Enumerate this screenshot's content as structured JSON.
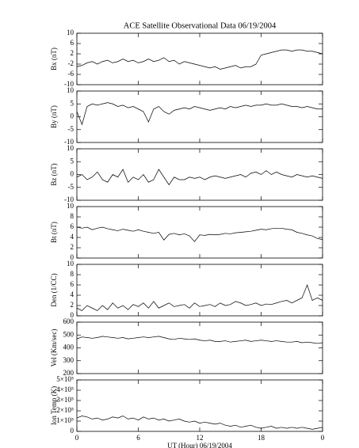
{
  "chart_data": [
    {
      "type": "line",
      "title": "ACE Satellite Observational Data   06/19/2004",
      "ylabel": "Bx (nT)",
      "x": [
        0,
        0.5,
        1,
        1.5,
        2,
        2.5,
        3,
        3.5,
        4,
        4.5,
        5,
        5.5,
        6,
        6.5,
        7,
        7.5,
        8,
        8.5,
        9,
        9.5,
        10,
        10.5,
        11,
        11.5,
        12,
        12.5,
        13,
        13.5,
        14,
        14.5,
        15,
        15.5,
        16,
        16.5,
        17,
        17.5,
        18,
        18.5,
        19,
        19.5,
        20,
        20.5,
        21,
        21.5,
        22,
        22.5,
        23,
        23.5,
        24
      ],
      "values": [
        -3,
        -2.5,
        -1.5,
        -1,
        -2,
        -1,
        -0.5,
        -1.5,
        -1,
        0,
        -1,
        -0.5,
        -1.5,
        -1,
        0,
        -1,
        -0.5,
        0.5,
        -1,
        -0.5,
        -2,
        -1,
        -1.5,
        -2,
        -2.5,
        -3,
        -3.5,
        -3,
        -4,
        -3.5,
        -3,
        -2.5,
        -3.5,
        -3,
        -3,
        -2,
        1.5,
        2,
        2.5,
        3,
        3.5,
        3.5,
        3,
        3.5,
        3.5,
        3,
        3,
        2.5,
        2
      ],
      "color": "#000000",
      "xlim": [
        0,
        24
      ],
      "xticks": [
        0,
        6,
        12,
        18,
        {
          "value": 24,
          "label": "0"
        }
      ],
      "ylim": [
        -10,
        10
      ],
      "yticks": [
        -10,
        -6,
        -2,
        2,
        6,
        10
      ]
    },
    {
      "type": "line",
      "ylabel": "By (nT)",
      "x": [
        0,
        0.5,
        1,
        1.5,
        2,
        2.5,
        3,
        3.5,
        4,
        4.5,
        5,
        5.5,
        6,
        6.5,
        7,
        7.5,
        8,
        8.5,
        9,
        9.5,
        10,
        10.5,
        11,
        11.5,
        12,
        12.5,
        13,
        13.5,
        14,
        14.5,
        15,
        15.5,
        16,
        16.5,
        17,
        17.5,
        18,
        18.5,
        19,
        19.5,
        20,
        20.5,
        21,
        21.5,
        22,
        22.5,
        23,
        23.5,
        24
      ],
      "values": [
        2,
        -3,
        4,
        5,
        4.5,
        5,
        5.5,
        5,
        4,
        4.5,
        3.5,
        4,
        3,
        2,
        -2,
        3,
        4,
        2,
        1,
        2.5,
        3,
        3.5,
        3,
        4,
        3.5,
        3,
        2.5,
        3,
        3.5,
        3,
        4,
        3.5,
        4,
        4.5,
        4,
        4.5,
        4.5,
        5,
        4.5,
        4.5,
        5,
        4.5,
        4,
        4,
        3.5,
        4,
        3.5,
        3,
        3
      ],
      "color": "#000000",
      "xlim": [
        0,
        24
      ],
      "xticks": [
        0,
        6,
        12,
        18,
        {
          "value": 24,
          "label": "0"
        }
      ],
      "ylim": [
        -10,
        10
      ],
      "yticks": [
        -10,
        -5,
        0,
        5,
        10
      ]
    },
    {
      "type": "line",
      "ylabel": "Bz (nT)",
      "x": [
        0,
        0.5,
        1,
        1.5,
        2,
        2.5,
        3,
        3.5,
        4,
        4.5,
        5,
        5.5,
        6,
        6.5,
        7,
        7.5,
        8,
        8.5,
        9,
        9.5,
        10,
        10.5,
        11,
        11.5,
        12,
        12.5,
        13,
        13.5,
        14,
        14.5,
        15,
        15.5,
        16,
        16.5,
        17,
        17.5,
        18,
        18.5,
        19,
        19.5,
        20,
        20.5,
        21,
        21.5,
        22,
        22.5,
        23,
        23.5,
        24
      ],
      "values": [
        -1,
        0,
        -2,
        -1,
        1,
        -2,
        -3,
        0,
        -1,
        2,
        -3,
        -1,
        -2,
        0,
        -3,
        -2,
        2,
        -1,
        -4,
        -1,
        -2,
        -2,
        -1,
        -1.5,
        -1,
        -2,
        -1,
        -0.5,
        -1,
        -1.5,
        -1,
        -0.5,
        0,
        -1,
        0.5,
        1,
        0,
        1.5,
        0,
        1,
        0,
        -0.5,
        -1,
        0,
        -0.5,
        -1,
        -0.5,
        -1,
        -1.5
      ],
      "color": "#000000",
      "xlim": [
        0,
        24
      ],
      "xticks": [
        0,
        6,
        12,
        18,
        {
          "value": 24,
          "label": "0"
        }
      ],
      "ylim": [
        -10,
        10
      ],
      "yticks": [
        -10,
        -5,
        0,
        5,
        10
      ]
    },
    {
      "type": "line",
      "ylabel": "Bt (nT)",
      "x": [
        0,
        0.5,
        1,
        1.5,
        2,
        2.5,
        3,
        3.5,
        4,
        4.5,
        5,
        5.5,
        6,
        6.5,
        7,
        7.5,
        8,
        8.5,
        9,
        9.5,
        10,
        10.5,
        11,
        11.5,
        12,
        12.5,
        13,
        13.5,
        14,
        14.5,
        15,
        15.5,
        16,
        16.5,
        17,
        17.5,
        18,
        18.5,
        19,
        19.5,
        20,
        20.5,
        21,
        21.5,
        22,
        22.5,
        23,
        23.5,
        24
      ],
      "values": [
        6,
        5.8,
        6,
        5.5,
        5.8,
        6,
        5.7,
        5.5,
        5.3,
        5.6,
        5.4,
        5.2,
        5.5,
        5.2,
        5,
        4.8,
        5,
        3.5,
        4.6,
        4.8,
        4.5,
        4.7,
        4.3,
        3.2,
        4.5,
        4.4,
        4.6,
        4.5,
        4.6,
        4.8,
        4.7,
        4.9,
        5,
        5.1,
        5.2,
        5.4,
        5.6,
        5.5,
        5.7,
        5.8,
        5.8,
        5.6,
        5.5,
        5,
        4.8,
        4.5,
        4.3,
        3.8,
        3.6
      ],
      "color": "#000000",
      "xlim": [
        0,
        24
      ],
      "xticks": [
        0,
        6,
        12,
        18,
        {
          "value": 24,
          "label": "0"
        }
      ],
      "ylim": [
        0,
        10
      ],
      "yticks": [
        0,
        2,
        4,
        6,
        8,
        10
      ]
    },
    {
      "type": "line",
      "ylabel": "Den (1/CC)",
      "x": [
        0,
        0.5,
        1,
        1.5,
        2,
        2.5,
        3,
        3.5,
        4,
        4.5,
        5,
        5.5,
        6,
        6.5,
        7,
        7.5,
        8,
        8.5,
        9,
        9.5,
        10,
        10.5,
        11,
        11.5,
        12,
        12.5,
        13,
        13.5,
        14,
        14.5,
        15,
        15.5,
        16,
        16.5,
        17,
        17.5,
        18,
        18.5,
        19,
        19.5,
        20,
        20.5,
        21,
        21.5,
        22,
        22.5,
        23,
        23.5,
        24
      ],
      "values": [
        1.5,
        1,
        2,
        1.5,
        1,
        2,
        1.2,
        2.5,
        1.5,
        2,
        1.2,
        2.2,
        1.8,
        2.5,
        1.5,
        2.8,
        1.5,
        2,
        2.5,
        1.8,
        2,
        2.2,
        1.5,
        2.5,
        1.8,
        2,
        2.2,
        1.8,
        2.5,
        2,
        2.2,
        2.8,
        2.5,
        2,
        2.2,
        2.5,
        2,
        2.3,
        2.2,
        2.5,
        2.8,
        3,
        2.5,
        3,
        3.5,
        6,
        3,
        3.5,
        3
      ],
      "color": "#000000",
      "xlim": [
        0,
        24
      ],
      "xticks": [
        0,
        6,
        12,
        18,
        {
          "value": 24,
          "label": "0"
        }
      ],
      "ylim": [
        0,
        10
      ],
      "yticks": [
        0,
        2,
        4,
        6,
        8,
        10
      ]
    },
    {
      "type": "line",
      "ylabel": "Vel (Km/sec)",
      "x": [
        0,
        0.5,
        1,
        1.5,
        2,
        2.5,
        3,
        3.5,
        4,
        4.5,
        5,
        5.5,
        6,
        6.5,
        7,
        7.5,
        8,
        8.5,
        9,
        9.5,
        10,
        10.5,
        11,
        11.5,
        12,
        12.5,
        13,
        13.5,
        14,
        14.5,
        15,
        15.5,
        16,
        16.5,
        17,
        17.5,
        18,
        18.5,
        19,
        19.5,
        20,
        20.5,
        21,
        21.5,
        22,
        22.5,
        23,
        23.5,
        24
      ],
      "values": [
        470,
        485,
        480,
        475,
        480,
        490,
        485,
        480,
        475,
        480,
        470,
        475,
        480,
        485,
        480,
        485,
        490,
        480,
        470,
        465,
        475,
        470,
        465,
        470,
        460,
        455,
        460,
        450,
        450,
        455,
        445,
        450,
        455,
        460,
        450,
        455,
        460,
        455,
        450,
        455,
        450,
        445,
        445,
        450,
        440,
        445,
        440,
        435,
        440
      ],
      "color": "#000000",
      "xlim": [
        0,
        24
      ],
      "xticks": [
        0,
        6,
        12,
        18,
        {
          "value": 24,
          "label": "0"
        }
      ],
      "ylim": [
        200,
        600
      ],
      "yticks": [
        200,
        300,
        400,
        500,
        600
      ]
    },
    {
      "type": "line",
      "ylabel": "Ion Temp (K)",
      "xlabel": "UT (Hour)   06/19/2004",
      "x": [
        0,
        0.5,
        1,
        1.5,
        2,
        2.5,
        3,
        3.5,
        4,
        4.5,
        5,
        5.5,
        6,
        6.5,
        7,
        7.5,
        8,
        8.5,
        9,
        9.5,
        10,
        10.5,
        11,
        11.5,
        12,
        12.5,
        13,
        13.5,
        14,
        14.5,
        15,
        15.5,
        16,
        16.5,
        17,
        17.5,
        18,
        18.5,
        19,
        19.5,
        20,
        20.5,
        21,
        21.5,
        22,
        22.5,
        23,
        23.5,
        24
      ],
      "values": [
        130000,
        150000,
        140000,
        120000,
        130000,
        110000,
        120000,
        140000,
        130000,
        150000,
        120000,
        130000,
        110000,
        140000,
        120000,
        130000,
        110000,
        120000,
        100000,
        110000,
        120000,
        100000,
        90000,
        100000,
        80000,
        90000,
        80000,
        70000,
        80000,
        60000,
        50000,
        60000,
        40000,
        50000,
        60000,
        40000,
        30000,
        40000,
        50000,
        30000,
        40000,
        30000,
        40000,
        30000,
        40000,
        30000,
        20000,
        30000,
        40000
      ],
      "color": "#000000",
      "xlim": [
        0,
        24
      ],
      "xticks": [
        0,
        6,
        12,
        18,
        {
          "value": 24,
          "label": "0"
        }
      ],
      "ylim": [
        0,
        500000
      ],
      "yticks": [
        0,
        {
          "value": 100000,
          "label": "1×10⁵"
        },
        {
          "value": 200000,
          "label": "2×10⁵"
        },
        {
          "value": 300000,
          "label": "3×10⁵"
        },
        {
          "value": 400000,
          "label": "4×10⁵"
        },
        {
          "value": 500000,
          "label": "5×10⁵"
        }
      ]
    }
  ]
}
